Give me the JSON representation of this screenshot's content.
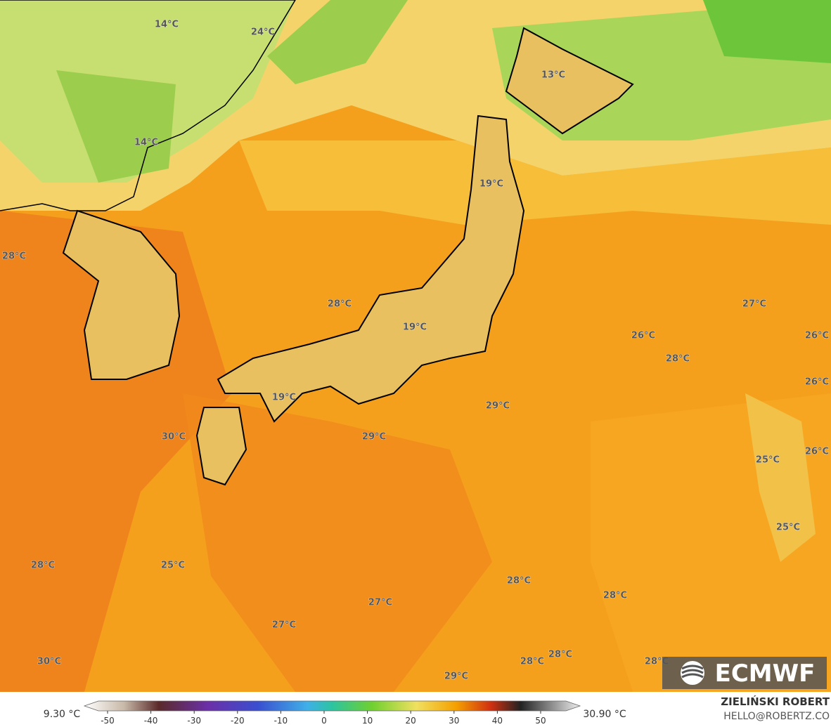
{
  "map": {
    "labels": [
      "14°C",
      "24°C",
      "13°C",
      "14°C",
      "19°C",
      "28°C",
      "28°C",
      "27°C",
      "19°C",
      "26°C",
      "26°C",
      "28°C",
      "26°C",
      "29°C",
      "19°C",
      "30°C",
      "29°C",
      "26°C",
      "25°C",
      "25°C",
      "28°C",
      "25°C",
      "28°C",
      "28°C",
      "27°C",
      "27°C",
      "30°C",
      "28°C",
      "28°C",
      "28°C",
      "29°C"
    ],
    "logo": "ECMWF"
  },
  "colorbar": {
    "min_label": "9.30 °C",
    "max_label": "30.90 °C",
    "ticks": [
      -50,
      -40,
      -30,
      -20,
      -10,
      0,
      10,
      20,
      30,
      40,
      50
    ]
  },
  "credit": {
    "name": "ZIELIŃSKI ROBERT",
    "email": "HELLO@ROBERTZ.CO"
  }
}
